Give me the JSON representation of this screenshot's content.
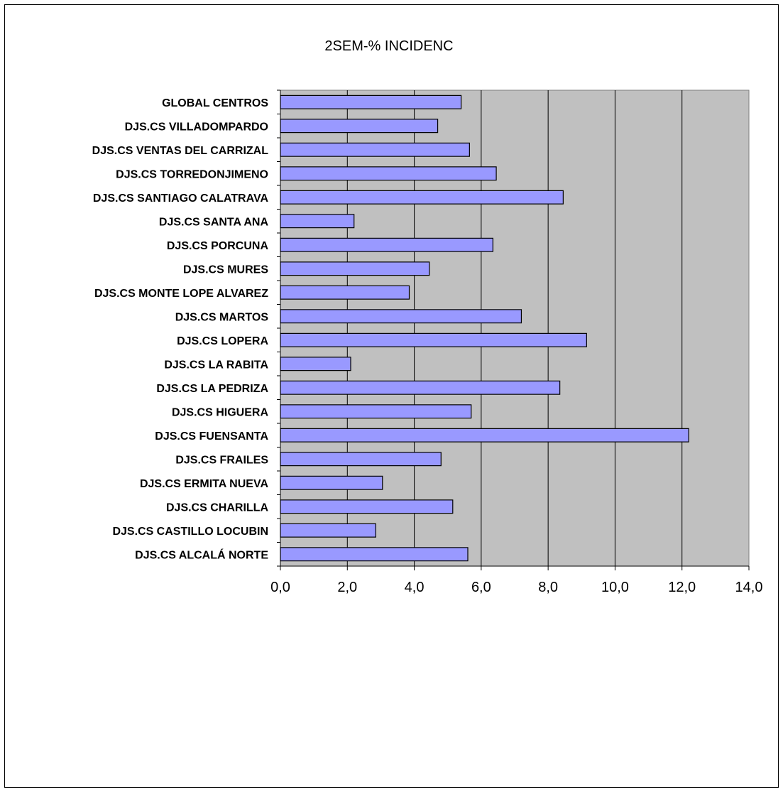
{
  "chart_data": {
    "type": "bar",
    "orientation": "horizontal",
    "title": "2SEM-% INCIDENC",
    "xlabel": "",
    "ylabel": "",
    "xlim": [
      0,
      14
    ],
    "xticks": [
      "0,0",
      "2,0",
      "4,0",
      "6,0",
      "8,0",
      "10,0",
      "12,0",
      "14,0"
    ],
    "grid": true,
    "colors": {
      "bar": "#9999ff",
      "plot_bg": "#c0c0c0",
      "grid": "#000000"
    },
    "categories": [
      "GLOBAL CENTROS",
      "DJS.CS VILLADOMPARDO",
      "DJS.CS VENTAS DEL CARRIZAL",
      "DJS.CS TORREDONJIMENO",
      "DJS.CS SANTIAGO CALATRAVA",
      "DJS.CS SANTA ANA",
      "DJS.CS PORCUNA",
      "DJS.CS MURES",
      "DJS.CS MONTE LOPE ALVAREZ",
      "DJS.CS MARTOS",
      "DJS.CS LOPERA",
      "DJS.CS LA RABITA",
      "DJS.CS LA PEDRIZA",
      "DJS.CS HIGUERA",
      "DJS.CS FUENSANTA",
      "DJS.CS FRAILES",
      "DJS.CS ERMITA NUEVA",
      "DJS.CS CHARILLA",
      "DJS.CS CASTILLO LOCUBIN",
      "DJS.CS ALCALÁ NORTE"
    ],
    "values": [
      5.4,
      4.7,
      5.65,
      6.45,
      8.45,
      2.2,
      6.35,
      4.45,
      3.85,
      7.2,
      9.15,
      2.1,
      8.35,
      5.7,
      12.2,
      4.8,
      3.05,
      5.15,
      2.85,
      5.6
    ]
  }
}
